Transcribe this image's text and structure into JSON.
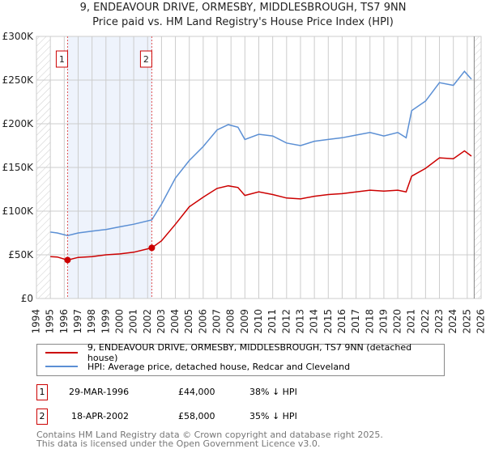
{
  "title": "9, ENDEAVOUR DRIVE, ORMESBY, MIDDLESBROUGH, TS7 9NN",
  "subtitle": "Price paid vs. HM Land Registry's House Price Index (HPI)",
  "chart_data": {
    "type": "line",
    "xlim": [
      1994,
      2026
    ],
    "ylim": [
      0,
      300000
    ],
    "x_ticks": [
      "1994",
      "1995",
      "1996",
      "1997",
      "1998",
      "1999",
      "2000",
      "2001",
      "2002",
      "2003",
      "2004",
      "2005",
      "2006",
      "2007",
      "2008",
      "2009",
      "2010",
      "2011",
      "2012",
      "2013",
      "2014",
      "2015",
      "2016",
      "2017",
      "2018",
      "2019",
      "2020",
      "2021",
      "2022",
      "2023",
      "2024",
      "2025",
      "2026"
    ],
    "y_ticks": [
      {
        "v": 0,
        "l": "£0"
      },
      {
        "v": 50000,
        "l": "£50K"
      },
      {
        "v": 100000,
        "l": "£100K"
      },
      {
        "v": 150000,
        "l": "£150K"
      },
      {
        "v": 200000,
        "l": "£200K"
      },
      {
        "v": 250000,
        "l": "£250K"
      },
      {
        "v": 300000,
        "l": "£300K"
      }
    ],
    "series": [
      {
        "name": "9, ENDEAVOUR DRIVE, ORMESBY, MIDDLESBROUGH, TS7 9NN (detached house)",
        "color": "#cc0000",
        "x": [
          1995,
          1995.5,
          1996.24,
          1997,
          1998,
          1999,
          2000,
          2001,
          2002.3,
          2003,
          2004,
          2005,
          2006,
          2007,
          2007.8,
          2008.5,
          2009,
          2010,
          2011,
          2012,
          2013,
          2014,
          2015,
          2016,
          2017,
          2018,
          2019,
          2020,
          2020.6,
          2021,
          2022,
          2023,
          2024,
          2024.8,
          2025.3
        ],
        "y": [
          48000,
          47500,
          44000,
          47000,
          48000,
          50000,
          51000,
          53000,
          58000,
          66000,
          85000,
          105000,
          116000,
          126000,
          129000,
          127000,
          118000,
          122000,
          119000,
          115000,
          114000,
          117000,
          119000,
          120000,
          122000,
          124000,
          123000,
          124000,
          122000,
          140000,
          149000,
          161000,
          160000,
          169000,
          163000
        ]
      },
      {
        "name": "HPI: Average price, detached house, Redcar and Cleveland",
        "color": "#5b8fd4",
        "x": [
          1995,
          1995.5,
          1996.24,
          1997,
          1998,
          1999,
          2000,
          2001,
          2002.3,
          2003,
          2004,
          2005,
          2006,
          2007,
          2007.8,
          2008.5,
          2009,
          2010,
          2011,
          2012,
          2013,
          2014,
          2015,
          2016,
          2017,
          2018,
          2019,
          2020,
          2020.6,
          2021,
          2022,
          2023,
          2024,
          2024.8,
          2025.3
        ],
        "y": [
          76000,
          75000,
          72000,
          75000,
          77000,
          79000,
          82000,
          85000,
          90000,
          108000,
          138000,
          158000,
          174000,
          193000,
          199000,
          196000,
          182000,
          188000,
          186000,
          178000,
          175000,
          180000,
          182000,
          184000,
          187000,
          190000,
          186000,
          190000,
          184000,
          215000,
          226000,
          247000,
          244000,
          260000,
          251000
        ]
      }
    ],
    "transactions": [
      {
        "label": "1",
        "x": 1996.24,
        "y": 44000
      },
      {
        "label": "2",
        "x": 2002.3,
        "y": 58000
      }
    ]
  },
  "legend": {
    "red": "9, ENDEAVOUR DRIVE, ORMESBY, MIDDLESBROUGH, TS7 9NN (detached house)",
    "blue": "HPI: Average price, detached house, Redcar and Cleveland"
  },
  "table": [
    {
      "n": "1",
      "date": "29-MAR-1996",
      "price": "£44,000",
      "hpi": "38% ↓ HPI"
    },
    {
      "n": "2",
      "date": "18-APR-2002",
      "price": "£58,000",
      "hpi": "35% ↓ HPI"
    }
  ],
  "footer": [
    "Contains HM Land Registry data © Crown copyright and database right 2025.",
    "This data is licensed under the Open Government Licence v3.0."
  ]
}
